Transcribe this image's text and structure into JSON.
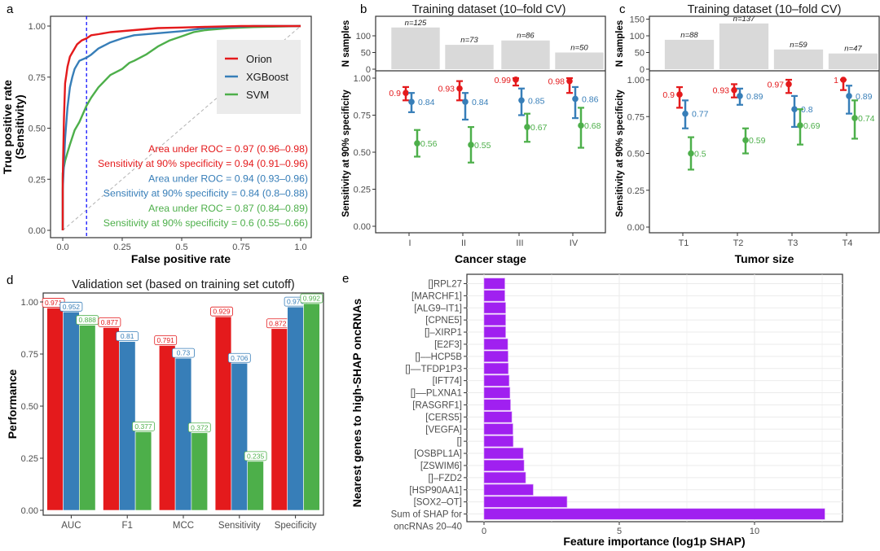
{
  "colors": {
    "orion": "#E41A1C",
    "xgboost": "#377EB8",
    "svm": "#4DAF4A",
    "ndbar": "#D9D9D9",
    "shap": "#A020F0",
    "cutoff": "#0000FF",
    "legend_bg": "#EBEBEB"
  },
  "chart_data": [
    {
      "id": "a",
      "type": "line",
      "panel_letter": "a",
      "title": "",
      "xlabel": "False positive rate",
      "ylabel_line1": "True positive rate",
      "ylabel_line2": "(Sensitivity)",
      "xlim": [
        0,
        1
      ],
      "ylim": [
        0,
        1
      ],
      "x_ticks": [
        0,
        0.25,
        0.5,
        0.75,
        1.0
      ],
      "x_tick_labels": [
        "0.0",
        "0.25",
        "0.5",
        "0.75",
        "1.0"
      ],
      "y_ticks": [
        0,
        0.25,
        0.5,
        0.75,
        1.0
      ],
      "y_tick_labels": [
        "0.00",
        "0.25",
        "0.50",
        "0.75",
        "1.00"
      ],
      "cutoff_fpr": 0.1,
      "legend_position": "top-right",
      "series": [
        {
          "name": "Orion",
          "color_key": "orion",
          "x": [
            0,
            0.0,
            0.005,
            0.01,
            0.015,
            0.02,
            0.03,
            0.04,
            0.05,
            0.06,
            0.08,
            0.1,
            0.12,
            0.15,
            0.2,
            0.3,
            0.4,
            0.5,
            0.6,
            0.75,
            1.0
          ],
          "y": [
            0,
            0.25,
            0.55,
            0.72,
            0.76,
            0.8,
            0.85,
            0.87,
            0.89,
            0.91,
            0.93,
            0.94,
            0.955,
            0.96,
            0.97,
            0.98,
            0.99,
            0.993,
            0.996,
            1.0,
            1.0
          ]
        },
        {
          "name": "XGBoost",
          "color_key": "xgboost",
          "x": [
            0,
            0.0,
            0.01,
            0.02,
            0.03,
            0.04,
            0.05,
            0.07,
            0.1,
            0.12,
            0.15,
            0.2,
            0.25,
            0.3,
            0.4,
            0.5,
            0.6,
            0.7,
            0.8,
            1.0
          ],
          "y": [
            0,
            0.2,
            0.45,
            0.6,
            0.7,
            0.75,
            0.79,
            0.83,
            0.845,
            0.86,
            0.89,
            0.92,
            0.94,
            0.955,
            0.965,
            0.975,
            0.99,
            0.995,
            1.0,
            1.0
          ]
        },
        {
          "name": "SVM",
          "color_key": "svm",
          "x": [
            0,
            0.0,
            0.01,
            0.02,
            0.03,
            0.05,
            0.07,
            0.1,
            0.12,
            0.15,
            0.2,
            0.25,
            0.28,
            0.3,
            0.35,
            0.4,
            0.45,
            0.5,
            0.55,
            0.6,
            0.7,
            0.8,
            1.0
          ],
          "y": [
            0,
            0.28,
            0.34,
            0.38,
            0.42,
            0.49,
            0.53,
            0.61,
            0.65,
            0.7,
            0.76,
            0.79,
            0.82,
            0.83,
            0.86,
            0.9,
            0.93,
            0.95,
            0.97,
            0.98,
            0.99,
            0.995,
            1.0
          ]
        }
      ],
      "annotations": [
        {
          "text": "Area under ROC = 0.97 (0.96–0.98)",
          "color_key": "orion"
        },
        {
          "text": "Sensitivity at 90% specificity = 0.94 (0.91–0.96)",
          "color_key": "orion"
        },
        {
          "text": "Area under ROC = 0.94 (0.93–0.96)",
          "color_key": "xgboost"
        },
        {
          "text": "Sensitivity at 90% specificity = 0.84 (0.8–0.88)",
          "color_key": "xgboost"
        },
        {
          "text": "Area under ROC = 0.87 (0.84–0.89)",
          "color_key": "svm"
        },
        {
          "text": "Sensitivity at 90% specificity = 0.6 (0.55–0.66)",
          "color_key": "svm"
        }
      ]
    },
    {
      "id": "b",
      "type": "scatter",
      "panel_letter": "b",
      "title": "Training dataset (10–fold CV)",
      "xlabel": "Cancer stage",
      "ylabel": "Sensitivity at 90% specificity",
      "top_ylabel": "N samples",
      "categories": [
        "I",
        "II",
        "III",
        "IV"
      ],
      "n_samples": [
        125,
        73,
        86,
        50
      ],
      "n_labels": [
        "n=125",
        "n=73",
        "n=86",
        "n=50"
      ],
      "top_ylim": [
        0,
        150
      ],
      "top_y_ticks": [
        0,
        50,
        100
      ],
      "ylim": [
        0,
        1
      ],
      "y_ticks": [
        0,
        0.25,
        0.5,
        0.75,
        1.0
      ],
      "y_tick_labels": [
        "0.00",
        "0.25",
        "0.50",
        "0.75",
        "1.00"
      ],
      "series": [
        {
          "name": "Orion",
          "color_key": "orion",
          "values": [
            0.9,
            0.93,
            0.99,
            0.98
          ],
          "labels": [
            "0.9",
            "0.93",
            "0.99",
            "0.98"
          ],
          "lower": [
            0.85,
            0.85,
            0.95,
            0.9
          ],
          "upper": [
            0.94,
            0.98,
            1.0,
            1.0
          ]
        },
        {
          "name": "XGBoost",
          "color_key": "xgboost",
          "values": [
            0.84,
            0.84,
            0.85,
            0.86
          ],
          "labels": [
            "0.84",
            "0.84",
            "0.85",
            "0.86"
          ],
          "lower": [
            0.77,
            0.72,
            0.75,
            0.73
          ],
          "upper": [
            0.9,
            0.9,
            0.93,
            0.94
          ]
        },
        {
          "name": "SVM",
          "color_key": "svm",
          "values": [
            0.56,
            0.55,
            0.67,
            0.68
          ],
          "labels": [
            "0.56",
            "0.55",
            "0.67",
            "0.68"
          ],
          "lower": [
            0.47,
            0.43,
            0.57,
            0.53
          ],
          "upper": [
            0.65,
            0.67,
            0.76,
            0.8
          ]
        }
      ]
    },
    {
      "id": "c",
      "type": "scatter",
      "panel_letter": "c",
      "title": "Training dataset (10–fold CV)",
      "xlabel": "Tumor size",
      "ylabel": "Sensitivity at 90% specificity",
      "top_ylabel": "N samples",
      "categories": [
        "T1",
        "T2",
        "T3",
        "T4"
      ],
      "n_samples": [
        88,
        137,
        59,
        47
      ],
      "n_labels": [
        "n=88",
        "n=137",
        "n=59",
        "n=47"
      ],
      "top_ylim": [
        0,
        160
      ],
      "top_y_ticks": [
        0,
        50,
        100,
        150
      ],
      "ylim": [
        0,
        1
      ],
      "y_ticks": [
        0,
        0.25,
        0.5,
        0.75,
        1.0
      ],
      "y_tick_labels": [
        "0.00",
        "0.25",
        "0.50",
        "0.75",
        "1.00"
      ],
      "series": [
        {
          "name": "Orion",
          "color_key": "orion",
          "values": [
            0.9,
            0.93,
            0.97,
            1.0
          ],
          "labels": [
            "0.9",
            "0.93",
            "0.97",
            "1"
          ],
          "lower": [
            0.81,
            0.88,
            0.91,
            0.93
          ],
          "upper": [
            0.95,
            0.97,
            1.0,
            1.0
          ]
        },
        {
          "name": "XGBoost",
          "color_key": "xgboost",
          "values": [
            0.77,
            0.89,
            0.8,
            0.89
          ],
          "labels": [
            "0.77",
            "0.89",
            "0.8",
            "0.89"
          ],
          "lower": [
            0.67,
            0.83,
            0.68,
            0.77
          ],
          "upper": [
            0.86,
            0.94,
            0.89,
            0.96
          ]
        },
        {
          "name": "SVM",
          "color_key": "svm",
          "values": [
            0.5,
            0.59,
            0.69,
            0.74
          ],
          "labels": [
            "0.5",
            "0.59",
            "0.69",
            "0.74"
          ],
          "lower": [
            0.39,
            0.5,
            0.56,
            0.6
          ],
          "upper": [
            0.61,
            0.67,
            0.8,
            0.86
          ]
        }
      ]
    },
    {
      "id": "d",
      "type": "bar",
      "panel_letter": "d",
      "title": "Validation set (based on training set cutoff)",
      "xlabel": "",
      "ylabel": "Performance",
      "categories": [
        "AUC",
        "F1",
        "MCC",
        "Sensitivity",
        "Specificity"
      ],
      "ylim": [
        0,
        1
      ],
      "y_ticks": [
        0,
        0.25,
        0.5,
        0.75,
        1.0
      ],
      "y_tick_labels": [
        "0.00",
        "0.25",
        "0.50",
        "0.75",
        "1.00"
      ],
      "series": [
        {
          "name": "Orion",
          "color_key": "orion",
          "values": [
            0.971,
            0.877,
            0.791,
            0.929,
            0.872
          ],
          "labels": [
            "0.971",
            "0.877",
            "0.791",
            "0.929",
            "0.872"
          ]
        },
        {
          "name": "XGBoost",
          "color_key": "xgboost",
          "values": [
            0.952,
            0.81,
            0.73,
            0.706,
            0.976
          ],
          "labels": [
            "0.952",
            "0.81",
            "0.73",
            "0.706",
            "0.976"
          ]
        },
        {
          "name": "SVM",
          "color_key": "svm",
          "values": [
            0.888,
            0.377,
            0.372,
            0.235,
            0.992
          ],
          "labels": [
            "0.888",
            "0.377",
            "0.372",
            "0.235",
            "0.992"
          ]
        }
      ]
    },
    {
      "id": "e",
      "type": "bar",
      "orientation": "horizontal",
      "panel_letter": "e",
      "title": "",
      "xlabel": "Feature importance (log1p SHAP)",
      "ylabel": "Nearest genes to high-SHAP oncRNAs",
      "xlim": [
        0,
        13
      ],
      "x_ticks": [
        0,
        5,
        10
      ],
      "x_tick_labels": [
        "0",
        "5",
        "10"
      ],
      "categories": [
        "[]RPL27",
        "[MARCHF1]",
        "[ALG9–IT1]",
        "[CPNE5]",
        "[]–XIRP1",
        "[E2F3]",
        "[]––HCP5B",
        "[]––TFDP1P3",
        "[IFT74]",
        "[]––PLXNA1",
        "[RASGRF1]",
        "[CERS5]",
        "[VEGFA]",
        "[]",
        "[OSBPL1A]",
        "[ZSWIM6]",
        "[]–FZD2",
        "[HSP90AA1]",
        "[SOX2–OT]",
        "Sum of SHAP for\noncRNAs 20–40"
      ],
      "values": [
        0.77,
        0.77,
        0.8,
        0.8,
        0.8,
        0.88,
        0.89,
        0.9,
        0.93,
        0.96,
        0.98,
        1.03,
        1.07,
        1.08,
        1.45,
        1.48,
        1.54,
        1.82,
        3.07,
        12.6
      ]
    }
  ]
}
